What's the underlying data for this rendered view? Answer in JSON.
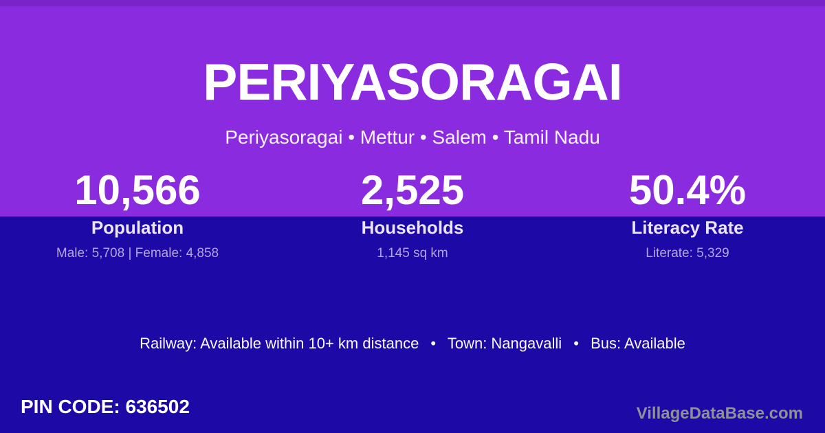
{
  "hero": {
    "title": "PERIYASORAGAI",
    "breadcrumb": "Periyasoragai • Mettur • Salem • Tamil Nadu"
  },
  "stats": [
    {
      "value": "10,566",
      "label": "Population",
      "detail": "Male: 5,708 | Female: 4,858"
    },
    {
      "value": "2,525",
      "label": "Households",
      "detail": "1,145 sq km"
    },
    {
      "value": "50.4%",
      "label": "Literacy Rate",
      "detail": "Literate: 5,329"
    }
  ],
  "transport_line": "Railway: Available within 10+ km distance  •  Town: Nangavalli  •  Bus: Available",
  "footer": {
    "pin_code": "PIN CODE: 636502",
    "watermark": "VillageDataBase.com"
  },
  "colors": {
    "purple_top": "#8a2be0",
    "purple_top_accent": "#7b23cb",
    "indigo_bottom": "#1c09a6",
    "stat_detail_text": "#b3a5e0",
    "watermark_text": "#90909b",
    "text_white": "#ffffff"
  }
}
